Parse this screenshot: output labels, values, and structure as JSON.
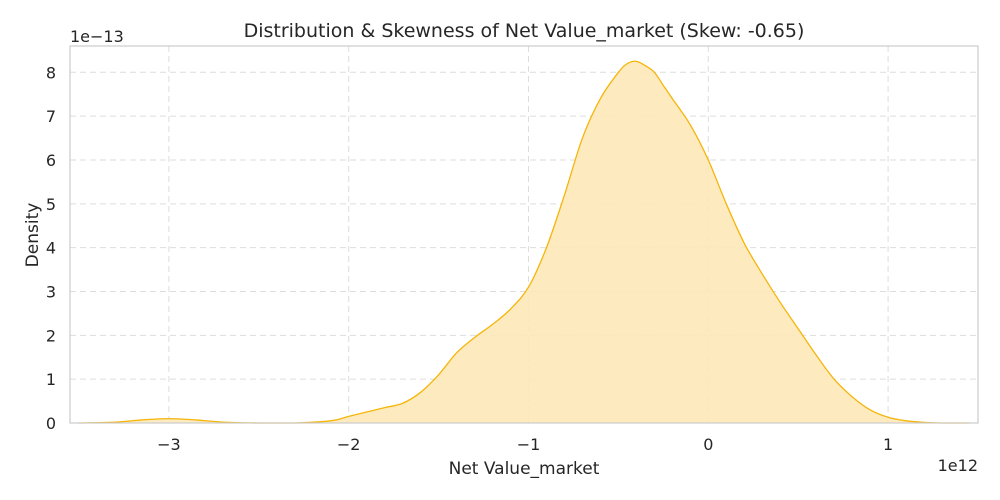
{
  "chart_data": {
    "type": "area",
    "title": "Distribution & Skewness of Net Value_market (Skew: -0.65)",
    "xlabel": "Net Value_market",
    "ylabel": "Density",
    "x_offset_label": "1e12",
    "y_offset_label": "1e−13",
    "x_scale": 1000000000000.0,
    "y_scale": 1e-13,
    "xlim": [
      -3.55,
      1.5
    ],
    "ylim": [
      0,
      8.6
    ],
    "x_ticks": [
      -3,
      -2,
      -1,
      0,
      1
    ],
    "x_tick_labels": [
      "−3",
      "−2",
      "−1",
      "0",
      "1"
    ],
    "y_ticks": [
      0,
      1,
      2,
      3,
      4,
      5,
      6,
      7,
      8
    ],
    "y_tick_labels": [
      "0",
      "1",
      "2",
      "3",
      "4",
      "5",
      "6",
      "7",
      "8"
    ],
    "grid": true,
    "line_color": "#f5b50a",
    "fill_color": "#fde9b8",
    "series": [
      {
        "x": [
          -3.5,
          -3.3,
          -3.15,
          -3.0,
          -2.85,
          -2.7,
          -2.5,
          -2.3,
          -2.1,
          -2.0,
          -1.9,
          -1.8,
          -1.7,
          -1.6,
          -1.5,
          -1.4,
          -1.3,
          -1.2,
          -1.1,
          -1.0,
          -0.9,
          -0.8,
          -0.7,
          -0.6,
          -0.5,
          -0.45,
          -0.4,
          -0.35,
          -0.3,
          -0.25,
          -0.2,
          -0.1,
          0.0,
          0.1,
          0.2,
          0.3,
          0.4,
          0.5,
          0.6,
          0.7,
          0.8,
          0.9,
          1.0,
          1.1,
          1.2,
          1.3,
          1.45
        ],
        "y": [
          0.0,
          0.02,
          0.07,
          0.1,
          0.07,
          0.02,
          0.0,
          0.0,
          0.05,
          0.15,
          0.25,
          0.35,
          0.45,
          0.7,
          1.1,
          1.6,
          1.95,
          2.25,
          2.6,
          3.1,
          4.0,
          5.2,
          6.5,
          7.4,
          8.0,
          8.2,
          8.25,
          8.15,
          8.0,
          7.7,
          7.4,
          6.8,
          6.0,
          5.0,
          4.1,
          3.4,
          2.75,
          2.15,
          1.55,
          1.0,
          0.6,
          0.3,
          0.13,
          0.05,
          0.015,
          0.0,
          0.0
        ]
      }
    ]
  }
}
